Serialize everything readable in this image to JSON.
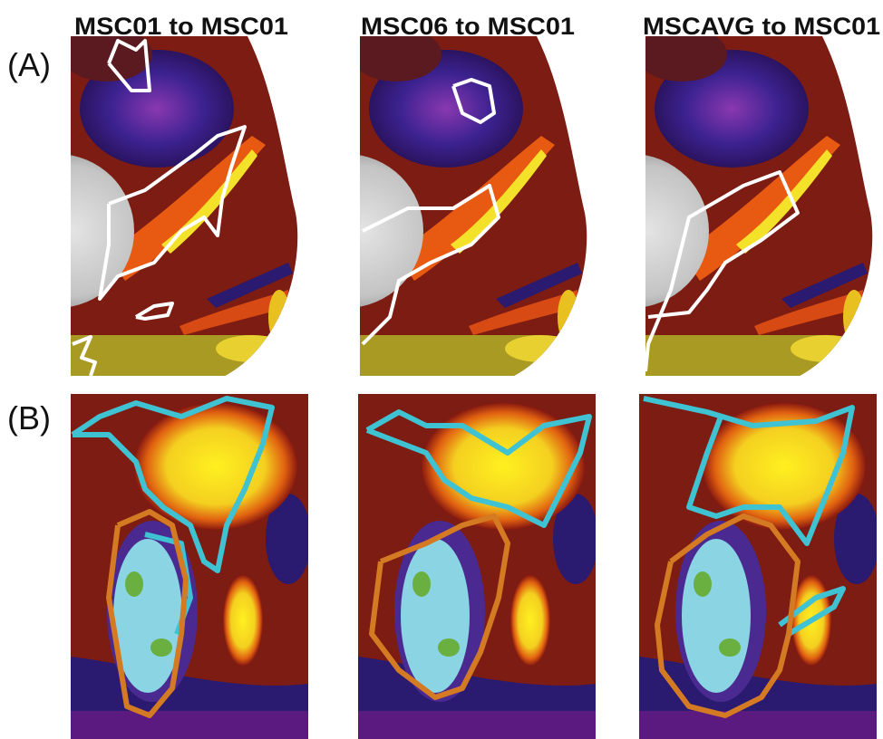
{
  "column_titles": [
    "MSC01 to MSC01",
    "MSC06 to MSC01",
    "MSCAVG to MSC01"
  ],
  "row_labels": [
    "(A)",
    "(B)"
  ]
}
